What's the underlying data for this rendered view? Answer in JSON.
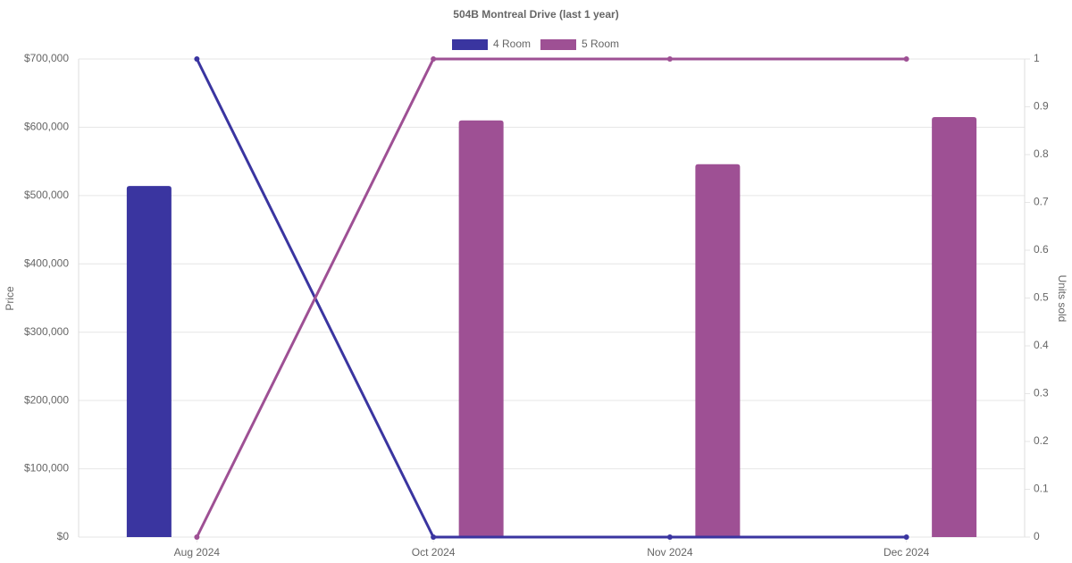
{
  "chart_data": {
    "type": "bar-line",
    "title": "504B Montreal Drive (last 1 year)",
    "categories": [
      "Aug 2024",
      "Oct 2024",
      "Nov 2024",
      "Dec 2024"
    ],
    "series": [
      {
        "name": "4 Room",
        "color": "#3a35a0",
        "values": [
          514000,
          null,
          null,
          null
        ],
        "units": [
          1,
          0,
          0,
          0
        ]
      },
      {
        "name": "5 Room",
        "color": "#9e5094",
        "values": [
          null,
          610000,
          546000,
          615000
        ],
        "units": [
          0,
          1,
          1,
          1
        ]
      }
    ],
    "y_label": "Price",
    "y2_label": "Units sold",
    "ylim": [
      0,
      700000
    ],
    "yticks": [
      {
        "value": 0,
        "label": "$0"
      },
      {
        "value": 100000,
        "label": "$100,000"
      },
      {
        "value": 200000,
        "label": "$200,000"
      },
      {
        "value": 300000,
        "label": "$300,000"
      },
      {
        "value": 400000,
        "label": "$400,000"
      },
      {
        "value": 500000,
        "label": "$500,000"
      },
      {
        "value": 600000,
        "label": "$600,000"
      },
      {
        "value": 700000,
        "label": "$700,000"
      }
    ],
    "y2lim": [
      0,
      1
    ],
    "y2ticks": [
      0,
      0.1,
      0.2,
      0.3,
      0.4,
      0.5,
      0.6,
      0.7,
      0.8,
      0.9,
      1
    ],
    "grid": true
  }
}
